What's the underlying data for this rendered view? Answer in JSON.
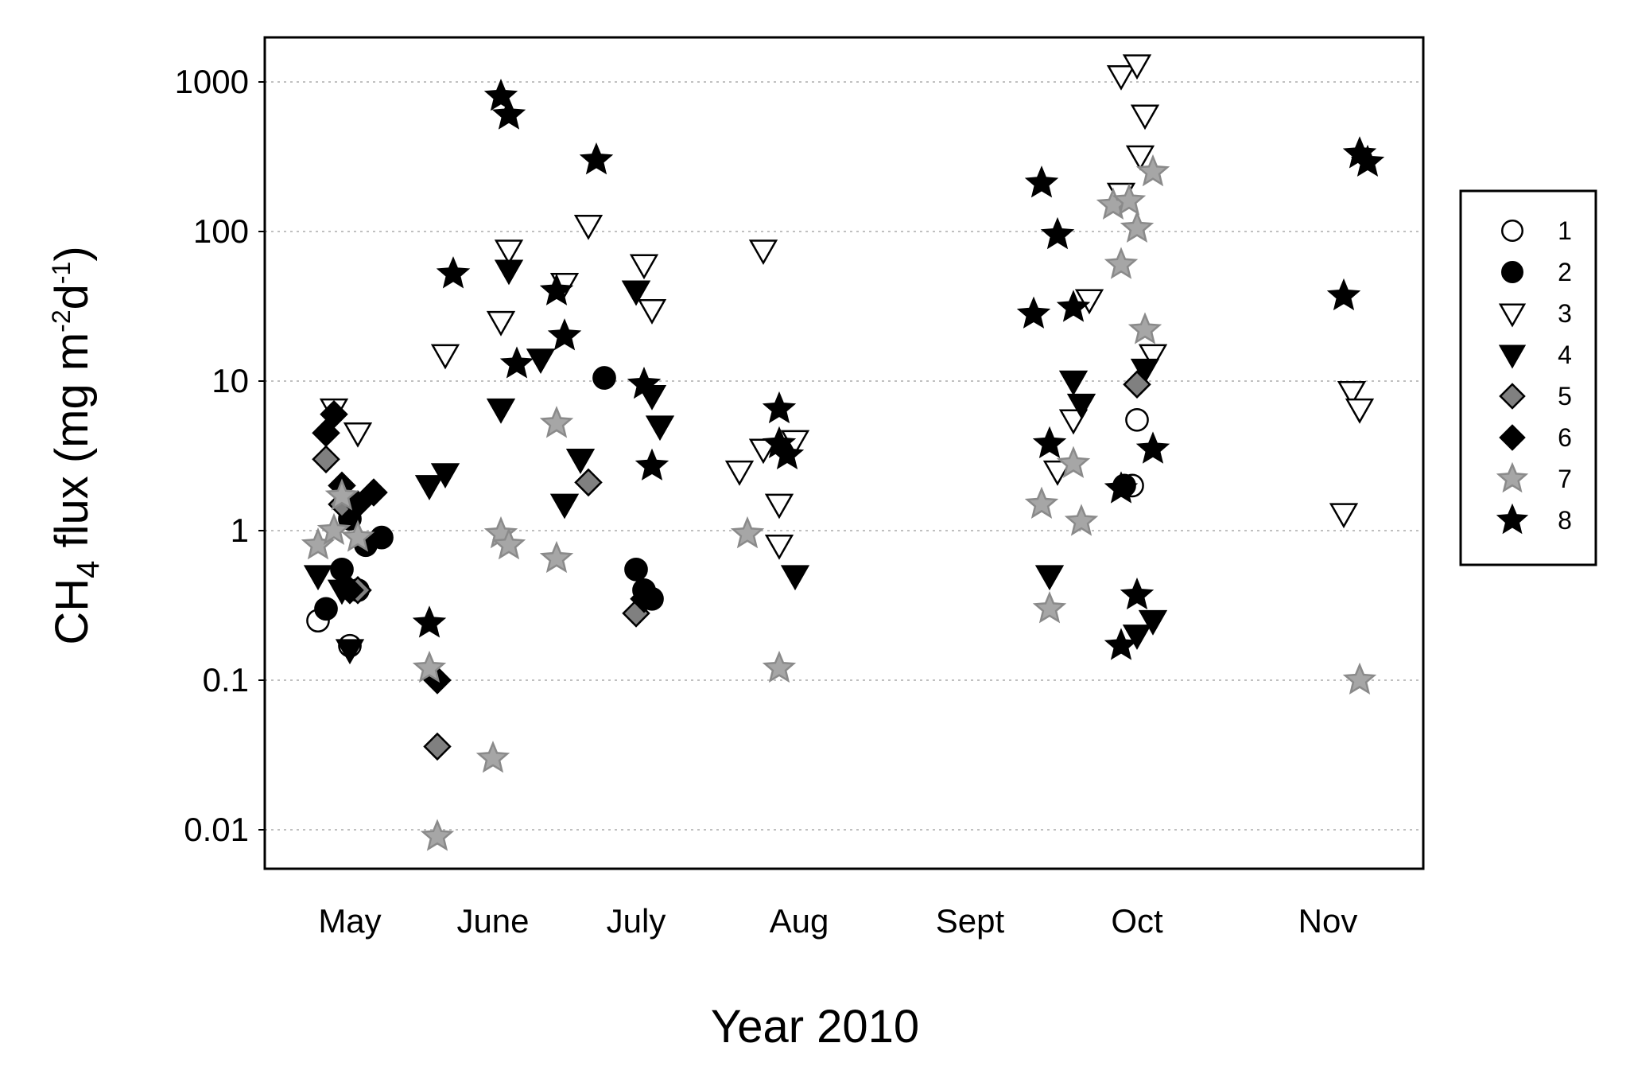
{
  "chart_data": {
    "type": "scatter",
    "title": "",
    "xlabel": "Year 2010",
    "ylabel": {
      "prefix": "CH",
      "sub4": "4",
      "mid": " flux (mg m",
      "sup1": "-2",
      "mid2": "d",
      "sup2": "-1",
      "suffix": ")"
    },
    "y_scale": "log",
    "ylim": [
      0.006,
      2000
    ],
    "y_ticks": [
      0.01,
      0.1,
      1,
      10,
      100,
      1000
    ],
    "y_tick_labels": [
      "0.01",
      "0.1",
      "1",
      "10",
      "100",
      "1000"
    ],
    "grid": "horizontal dotted",
    "x_months": [
      "May",
      "June",
      "July",
      "Aug",
      "Sept",
      "Oct",
      "Nov"
    ],
    "legend_position": "right",
    "series": [
      {
        "name": "1",
        "marker": "circle",
        "fill": "#ffffff",
        "points": [
          [
            "May",
            -0.1,
            0.25
          ],
          [
            "May",
            0.1,
            0.17
          ],
          [
            "May",
            0.15,
            0.4
          ],
          [
            "Oct",
            0.1,
            5.5
          ],
          [
            "Oct",
            0.07,
            2.0
          ]
        ]
      },
      {
        "name": "2",
        "marker": "circle",
        "fill": "#000000",
        "points": [
          [
            "May",
            -0.05,
            0.3
          ],
          [
            "May",
            0.2,
            0.8
          ],
          [
            "May",
            0.1,
            1.2
          ],
          [
            "May",
            0.3,
            0.9
          ],
          [
            "May",
            0.05,
            0.55
          ],
          [
            "June",
            0.8,
            10.5
          ],
          [
            "July",
            0.1,
            0.55
          ],
          [
            "July",
            0.15,
            0.4
          ],
          [
            "July",
            0.2,
            0.35
          ],
          [
            "Oct",
            0.02,
            2.0
          ]
        ]
      },
      {
        "name": "3",
        "marker": "triangle-down",
        "fill": "#ffffff",
        "points": [
          [
            "May",
            0.0,
            6.5
          ],
          [
            "May",
            0.15,
            4.5
          ],
          [
            "June",
            -0.2,
            15
          ],
          [
            "June",
            0.15,
            25
          ],
          [
            "June",
            0.2,
            75
          ],
          [
            "June",
            0.55,
            45
          ],
          [
            "June",
            0.7,
            110
          ],
          [
            "July",
            0.15,
            60
          ],
          [
            "July",
            0.1,
            40
          ],
          [
            "July",
            0.2,
            30
          ],
          [
            "July",
            0.9,
            75
          ],
          [
            "July",
            0.75,
            2.5
          ],
          [
            "July",
            0.9,
            3.5
          ],
          [
            "July",
            1.0,
            1.5
          ],
          [
            "July",
            1.0,
            0.8
          ],
          [
            "July",
            1.1,
            4.0
          ],
          [
            "Sept",
            0.65,
            2.5
          ],
          [
            "Sept",
            0.75,
            5.5
          ],
          [
            "Sept",
            0.85,
            35
          ],
          [
            "Oct",
            0.0,
            1100
          ],
          [
            "Oct",
            0.1,
            1300
          ],
          [
            "Oct",
            0.15,
            600
          ],
          [
            "Oct",
            0.12,
            320
          ],
          [
            "Oct",
            0.0,
            180
          ],
          [
            "Oct",
            0.2,
            15
          ],
          [
            "Nov",
            0.25,
            8.5
          ],
          [
            "Nov",
            0.3,
            6.5
          ],
          [
            "Nov",
            0.2,
            1.3
          ]
        ]
      },
      {
        "name": "4",
        "marker": "triangle-down",
        "fill": "#000000",
        "points": [
          [
            "May",
            -0.1,
            0.5
          ],
          [
            "May",
            0.05,
            0.4
          ],
          [
            "May",
            0.1,
            0.16
          ],
          [
            "June",
            -0.3,
            2.0
          ],
          [
            "June",
            -0.2,
            2.4
          ],
          [
            "June",
            0.15,
            6.5
          ],
          [
            "June",
            0.2,
            55
          ],
          [
            "June",
            0.4,
            14
          ],
          [
            "June",
            0.65,
            3.0
          ],
          [
            "June",
            0.55,
            1.5
          ],
          [
            "July",
            0.1,
            40
          ],
          [
            "July",
            0.2,
            8.0
          ],
          [
            "July",
            0.25,
            5.0
          ],
          [
            "July",
            1.1,
            0.5
          ],
          [
            "Sept",
            0.6,
            0.5
          ],
          [
            "Sept",
            0.75,
            10
          ],
          [
            "Sept",
            0.8,
            7.0
          ],
          [
            "Oct",
            0.15,
            12
          ],
          [
            "Oct",
            0.1,
            0.2
          ],
          [
            "Oct",
            0.2,
            0.25
          ]
        ]
      },
      {
        "name": "5",
        "marker": "diamond",
        "fill": "#808080",
        "points": [
          [
            "May",
            -0.05,
            3.0
          ],
          [
            "May",
            0.05,
            1.5
          ],
          [
            "May",
            0.15,
            0.4
          ],
          [
            "June",
            -0.25,
            0.036
          ],
          [
            "June",
            0.7,
            2.1
          ],
          [
            "July",
            0.1,
            0.28
          ],
          [
            "Oct",
            0.1,
            9.5
          ]
        ]
      },
      {
        "name": "6",
        "marker": "diamond",
        "fill": "#000000",
        "points": [
          [
            "May",
            0.0,
            6.0
          ],
          [
            "May",
            -0.05,
            4.5
          ],
          [
            "May",
            0.05,
            2.0
          ],
          [
            "May",
            0.15,
            1.5
          ],
          [
            "May",
            0.25,
            1.8
          ],
          [
            "May",
            0.1,
            0.4
          ],
          [
            "June",
            -0.25,
            0.1
          ],
          [
            "July",
            0.15,
            0.35
          ]
        ]
      },
      {
        "name": "7",
        "marker": "star",
        "fill": "#a6a6a6",
        "points": [
          [
            "May",
            -0.1,
            0.8
          ],
          [
            "May",
            0.0,
            1.0
          ],
          [
            "May",
            0.05,
            1.7
          ],
          [
            "May",
            0.15,
            0.9
          ],
          [
            "June",
            -0.25,
            0.009
          ],
          [
            "June",
            -0.3,
            0.12
          ],
          [
            "June",
            0.1,
            0.03
          ],
          [
            "June",
            0.15,
            0.95
          ],
          [
            "June",
            0.2,
            0.8
          ],
          [
            "June",
            0.5,
            5.2
          ],
          [
            "June",
            0.5,
            0.65
          ],
          [
            "July",
            0.8,
            0.95
          ],
          [
            "July",
            1.0,
            0.12
          ],
          [
            "Sept",
            0.55,
            1.5
          ],
          [
            "Sept",
            0.6,
            0.3
          ],
          [
            "Sept",
            0.75,
            2.8
          ],
          [
            "Sept",
            0.8,
            1.15
          ],
          [
            "Oct",
            -0.05,
            150
          ],
          [
            "Oct",
            0.05,
            160
          ],
          [
            "Oct",
            0.0,
            60
          ],
          [
            "Oct",
            0.1,
            105
          ],
          [
            "Oct",
            0.2,
            250
          ],
          [
            "Oct",
            0.15,
            22
          ],
          [
            "Nov",
            0.3,
            0.1
          ]
        ]
      },
      {
        "name": "8",
        "marker": "star",
        "fill": "#000000",
        "points": [
          [
            "June",
            -0.3,
            0.24
          ],
          [
            "June",
            -0.15,
            52
          ],
          [
            "June",
            0.15,
            800
          ],
          [
            "June",
            0.2,
            600
          ],
          [
            "June",
            0.25,
            13
          ],
          [
            "June",
            0.55,
            20
          ],
          [
            "June",
            0.5,
            40
          ],
          [
            "June",
            0.75,
            300
          ],
          [
            "July",
            0.15,
            9.5
          ],
          [
            "July",
            0.2,
            2.7
          ],
          [
            "July",
            1.0,
            6.5
          ],
          [
            "July",
            1.0,
            3.8
          ],
          [
            "July",
            1.05,
            3.2
          ],
          [
            "Sept",
            0.5,
            28
          ],
          [
            "Sept",
            0.55,
            210
          ],
          [
            "Sept",
            0.65,
            95
          ],
          [
            "Sept",
            0.75,
            31
          ],
          [
            "Sept",
            0.6,
            3.8
          ],
          [
            "Oct",
            0.0,
            1.9
          ],
          [
            "Oct",
            0.0,
            0.17
          ],
          [
            "Oct",
            0.1,
            0.37
          ],
          [
            "Oct",
            0.2,
            3.5
          ],
          [
            "Nov",
            0.2,
            37
          ],
          [
            "Nov",
            0.3,
            330
          ],
          [
            "Nov",
            0.35,
            290
          ]
        ]
      }
    ]
  },
  "legend": {
    "items": [
      {
        "label": "1",
        "marker": "circle",
        "fill": "#ffffff"
      },
      {
        "label": "2",
        "marker": "circle",
        "fill": "#000000"
      },
      {
        "label": "3",
        "marker": "triangle-down",
        "fill": "#ffffff"
      },
      {
        "label": "4",
        "marker": "triangle-down",
        "fill": "#000000"
      },
      {
        "label": "5",
        "marker": "diamond",
        "fill": "#808080"
      },
      {
        "label": "6",
        "marker": "diamond",
        "fill": "#000000"
      },
      {
        "label": "7",
        "marker": "star",
        "fill": "#a6a6a6"
      },
      {
        "label": "8",
        "marker": "star",
        "fill": "#000000"
      }
    ]
  }
}
